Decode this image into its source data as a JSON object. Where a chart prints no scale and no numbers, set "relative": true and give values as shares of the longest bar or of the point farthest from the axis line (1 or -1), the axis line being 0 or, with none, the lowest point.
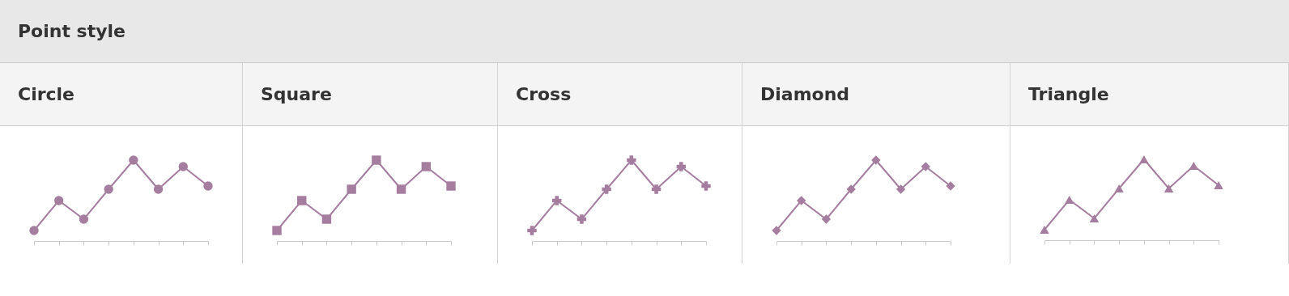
{
  "chart_data": [
    {
      "type": "other",
      "title": "Point style"
    },
    {
      "type": "line",
      "title": "Circle",
      "categories": [
        null,
        null,
        null,
        null,
        null,
        null,
        null,
        null
      ],
      "relative": true,
      "marker": "circle",
      "tick_labels": false,
      "series": [
        {
          "color": "#a57e9f",
          "values": [
            0.13,
            0.5,
            0.27,
            0.64,
            1,
            0.64,
            0.92,
            0.68
          ]
        }
      ]
    },
    {
      "type": "line",
      "title": "Square",
      "categories": [
        null,
        null,
        null,
        null,
        null,
        null,
        null,
        null
      ],
      "relative": true,
      "marker": "square",
      "tick_labels": false,
      "series": [
        {
          "color": "#a57e9f",
          "values": [
            0.13,
            0.5,
            0.27,
            0.64,
            1,
            0.64,
            0.92,
            0.68
          ]
        }
      ]
    },
    {
      "type": "line",
      "title": "Cross",
      "categories": [
        null,
        null,
        null,
        null,
        null,
        null,
        null,
        null
      ],
      "relative": true,
      "marker": "cross",
      "tick_labels": false,
      "series": [
        {
          "color": "#a57e9f",
          "values": [
            0.13,
            0.5,
            0.27,
            0.64,
            1,
            0.64,
            0.92,
            0.68
          ]
        }
      ]
    },
    {
      "type": "line",
      "title": "Diamond",
      "categories": [
        null,
        null,
        null,
        null,
        null,
        null,
        null,
        null
      ],
      "relative": true,
      "marker": "diamond",
      "tick_labels": false,
      "series": [
        {
          "color": "#a57e9f",
          "values": [
            0.13,
            0.5,
            0.27,
            0.64,
            1,
            0.64,
            0.92,
            0.68
          ]
        }
      ]
    },
    {
      "type": "line",
      "title": "Triangle",
      "categories": [
        null,
        null,
        null,
        null,
        null,
        null,
        null,
        null
      ],
      "relative": true,
      "marker": "triangle",
      "tick_labels": false,
      "series": [
        {
          "color": "#a57e9f",
          "values": [
            0.13,
            0.5,
            0.27,
            0.64,
            1,
            0.64,
            0.92,
            0.68
          ]
        }
      ]
    }
  ]
}
